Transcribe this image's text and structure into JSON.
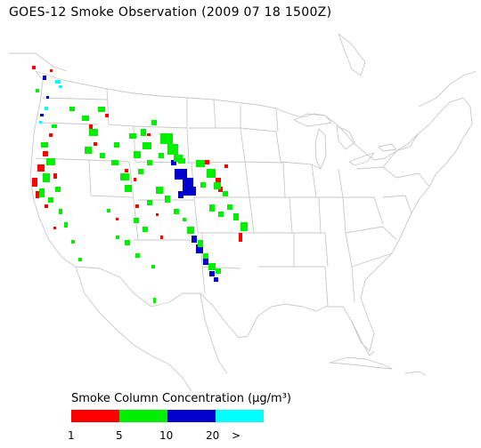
{
  "title": "GOES-12 Smoke Observation (2009 07 18  1500Z)",
  "legend": {
    "title": "Smoke Column Concentration (μg/m³)",
    "tick_labels": [
      "1",
      "5",
      "10",
      "20",
      ">"
    ],
    "bins": [
      {
        "range": "1-5",
        "color": "#ff0000"
      },
      {
        "range": "5-10",
        "color": "#00ee00"
      },
      {
        "range": "10-20",
        "color": "#0000cc"
      },
      {
        "range": ">20",
        "color": "#00ffff"
      }
    ]
  },
  "map": {
    "basemap": "contiguous United States with state boundaries",
    "outline_color": "#c8c8c8",
    "smoke_regions": [
      {
        "area": "Pacific Northwest / Washington coast",
        "levels": [
          "1-5",
          "5-10",
          ">20"
        ]
      },
      {
        "area": "Oregon and northern California coast",
        "levels": [
          "1-5",
          "5-10"
        ]
      },
      {
        "area": "Idaho / Montana",
        "levels": [
          "1-5",
          "5-10",
          "10-20"
        ]
      },
      {
        "area": "Wyoming / Colorado",
        "levels": [
          "5-10",
          "10-20"
        ]
      },
      {
        "area": "South Dakota / Nebraska",
        "levels": [
          "1-5",
          "5-10"
        ]
      },
      {
        "area": "Eastern New Mexico / West Texas",
        "levels": [
          "5-10",
          "10-20"
        ]
      },
      {
        "area": "Arizona / Utah",
        "levels": [
          "1-5",
          "5-10"
        ]
      }
    ]
  }
}
